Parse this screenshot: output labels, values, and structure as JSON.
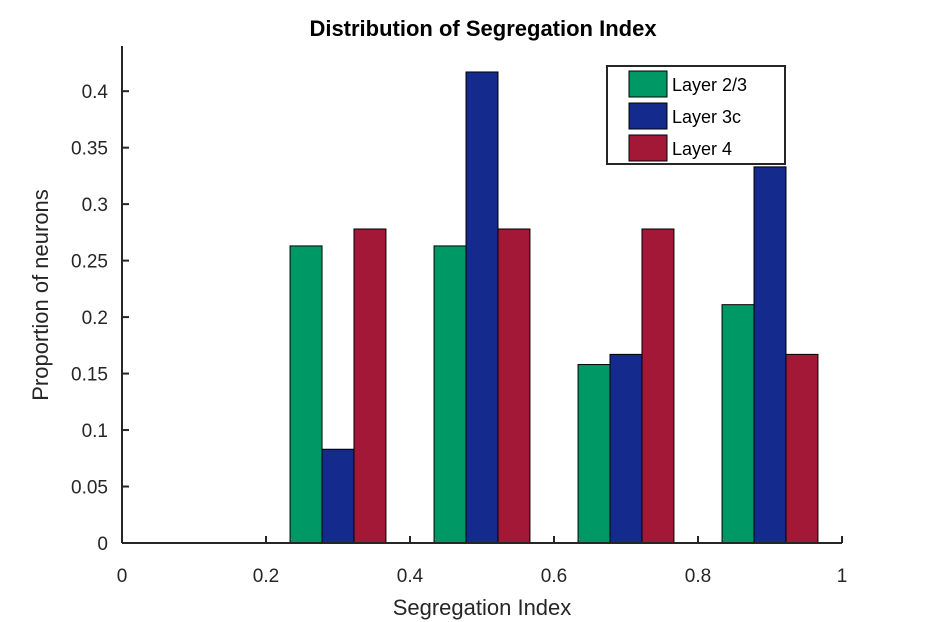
{
  "chart_data": {
    "type": "bar",
    "title": "Distribution of Segregation Index",
    "xlabel": "Segregation Index",
    "ylabel": "Proportion of neurons",
    "xlim": [
      0,
      1
    ],
    "ylim": [
      0,
      0.44
    ],
    "categories": [
      0.3,
      0.5,
      0.7,
      0.9
    ],
    "xticks": [
      0,
      0.2,
      0.4,
      0.6,
      0.8,
      1
    ],
    "xtick_labels": [
      "0",
      "0.2",
      "0.4",
      "0.6",
      "0.8",
      "1"
    ],
    "yticks": [
      0,
      0.05,
      0.1,
      0.15,
      0.2,
      0.25,
      0.3,
      0.35,
      0.4
    ],
    "ytick_labels": [
      "0",
      "0.05",
      "0.1",
      "0.15",
      "0.2",
      "0.25",
      "0.3",
      "0.35",
      "0.4"
    ],
    "series": [
      {
        "name": "Layer 2/3",
        "color": "#009966",
        "values": [
          0.263,
          0.263,
          0.158,
          0.211
        ]
      },
      {
        "name": "Layer 3c",
        "color": "#142a8c",
        "values": [
          0.083,
          0.417,
          0.167,
          0.333
        ]
      },
      {
        "name": "Layer 4",
        "color": "#a31737",
        "values": [
          0.278,
          0.278,
          0.278,
          0.167
        ]
      }
    ],
    "grid": false,
    "legend_position": "top-right"
  }
}
